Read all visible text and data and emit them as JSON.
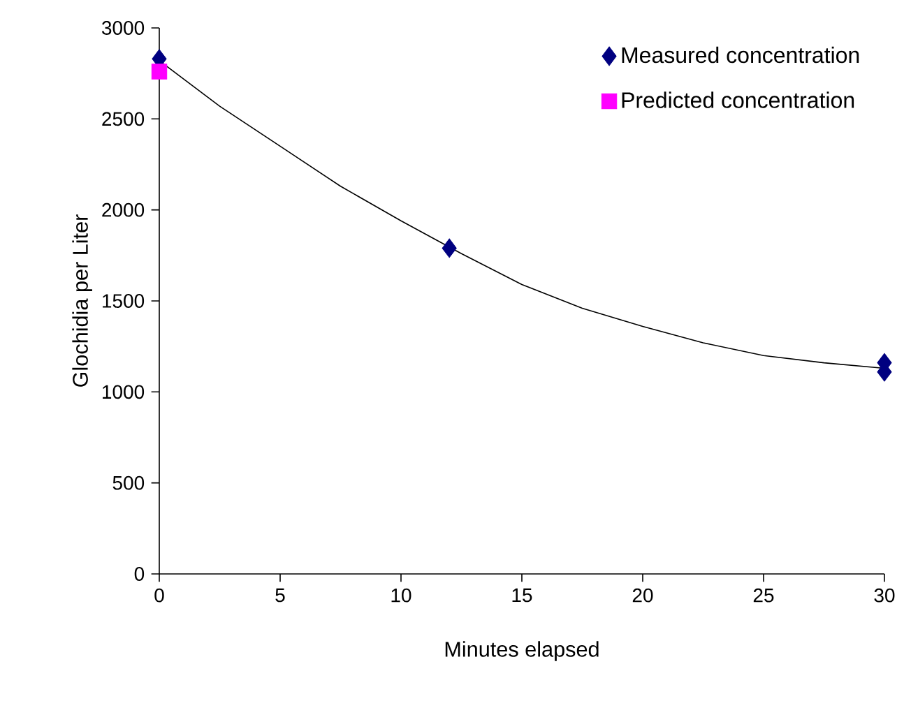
{
  "chart_data": {
    "type": "scatter",
    "xlabel": "Minutes elapsed",
    "ylabel": "Glochidia per Liter",
    "xlim": [
      0,
      30
    ],
    "ylim": [
      0,
      3000
    ],
    "xticks": [
      0,
      5,
      10,
      15,
      20,
      25,
      30
    ],
    "yticks": [
      0,
      500,
      1000,
      1500,
      2000,
      2500,
      3000
    ],
    "legend": "top right",
    "grid": false,
    "series": [
      {
        "type": "line",
        "color": "#000000",
        "marker": "none",
        "line_style": "solid",
        "x": [
          0,
          2.5,
          5,
          7.5,
          10,
          12.5,
          15,
          17.5,
          20,
          22.5,
          25,
          27.5,
          30
        ],
        "values": [
          2820,
          2570,
          2350,
          2130,
          1940,
          1760,
          1590,
          1460,
          1360,
          1270,
          1200,
          1160,
          1130
        ]
      },
      {
        "name": "Measured concentration",
        "marker": "diamond",
        "color": "#000080",
        "x": [
          0,
          12,
          30,
          30
        ],
        "values": [
          2830,
          1790,
          1160,
          1110
        ]
      },
      {
        "name": "Predicted concentration",
        "marker": "square",
        "color": "#ff00ff",
        "x": [
          0
        ],
        "values": [
          2760
        ]
      }
    ]
  }
}
